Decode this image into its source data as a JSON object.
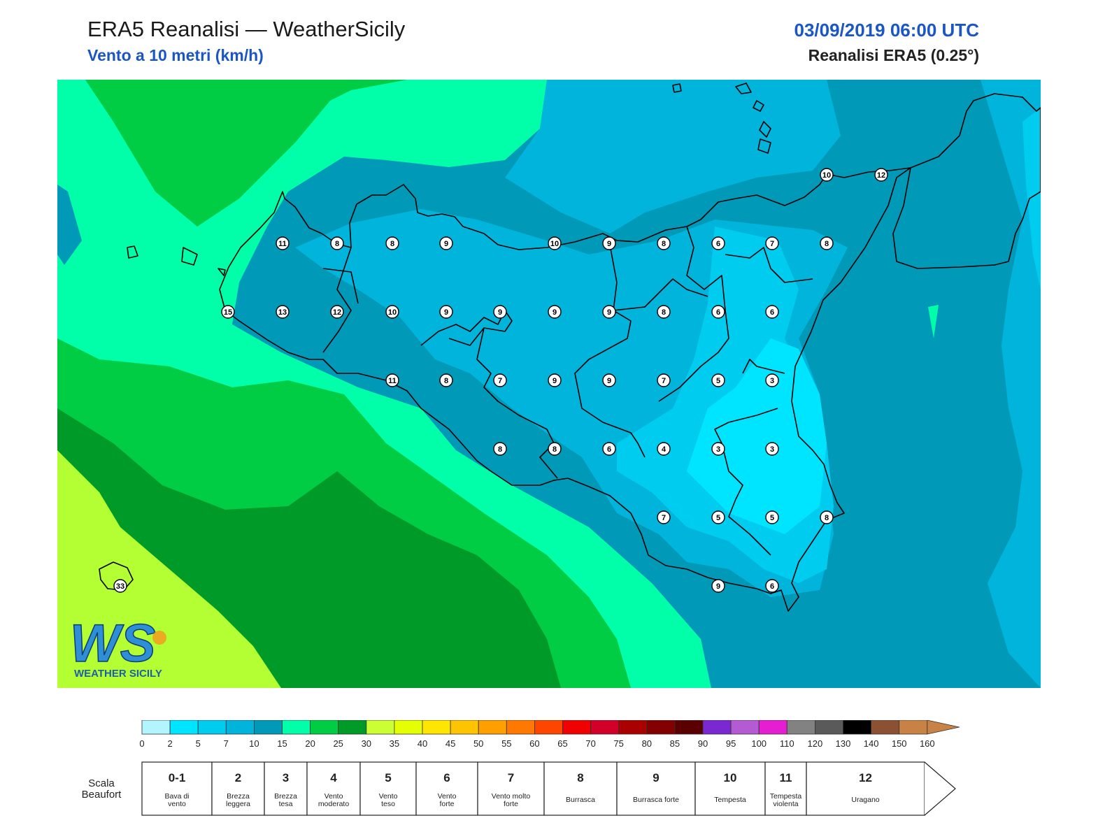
{
  "header": {
    "title": "ERA5 Reanalisi — WeatherSicily",
    "subtitle": "Vento a 10 metri (km/h)",
    "datetime": "03/09/2019 06:00 UTC",
    "model": "Reanalisi ERA5 (0.25°)"
  },
  "logo": {
    "letters": "WS",
    "text": "WEATHER SICILY"
  },
  "colorbar": {
    "ticks": [
      "0",
      "2",
      "5",
      "7",
      "10",
      "15",
      "20",
      "25",
      "30",
      "35",
      "40",
      "45",
      "50",
      "55",
      "60",
      "65",
      "70",
      "75",
      "80",
      "85",
      "90",
      "95",
      "100",
      "110",
      "120",
      "130",
      "140",
      "150",
      "160"
    ],
    "colors": [
      "#b3f5ff",
      "#00e5ff",
      "#00ccf0",
      "#00b4dc",
      "#0099b8",
      "#00ffa8",
      "#00cc44",
      "#009a28",
      "#ccff33",
      "#e6ff00",
      "#ffe600",
      "#ffc400",
      "#ffa000",
      "#ff7800",
      "#ff4600",
      "#f00000",
      "#d20028",
      "#aa0000",
      "#820000",
      "#5a0000",
      "#7a28d2",
      "#b45ad2",
      "#e61ed2",
      "#828282",
      "#5a5a5a",
      "#000000",
      "#8c5032",
      "#c88246"
    ]
  },
  "beaufort": {
    "title": "Scala Beaufort",
    "classes": [
      {
        "num": "0-1",
        "name": "Bava di vento"
      },
      {
        "num": "2",
        "name": "Brezza leggera"
      },
      {
        "num": "3",
        "name": "Brezza tesa"
      },
      {
        "num": "4",
        "name": "Vento moderato"
      },
      {
        "num": "5",
        "name": "Vento teso"
      },
      {
        "num": "6",
        "name": "Vento forte"
      },
      {
        "num": "7",
        "name": "Vento molto forte"
      },
      {
        "num": "8",
        "name": "Burrasca"
      },
      {
        "num": "9",
        "name": "Burrasca forte"
      },
      {
        "num": "10",
        "name": "Tempesta"
      },
      {
        "num": "11",
        "name": "Tempesta violenta"
      },
      {
        "num": "12",
        "name": "Uragano"
      }
    ]
  },
  "stations": [
    {
      "v": "10"
    },
    {
      "v": "12"
    },
    {
      "v": "11"
    },
    {
      "v": "8"
    },
    {
      "v": "8"
    },
    {
      "v": "9"
    },
    {
      "v": "10"
    },
    {
      "v": "9"
    },
    {
      "v": "8"
    },
    {
      "v": "6"
    },
    {
      "v": "7"
    },
    {
      "v": "8"
    },
    {
      "v": "15"
    },
    {
      "v": "13"
    },
    {
      "v": "12"
    },
    {
      "v": "10"
    },
    {
      "v": "9"
    },
    {
      "v": "9"
    },
    {
      "v": "9"
    },
    {
      "v": "9"
    },
    {
      "v": "8"
    },
    {
      "v": "6"
    },
    {
      "v": "6"
    },
    {
      "v": "11"
    },
    {
      "v": "8"
    },
    {
      "v": "7"
    },
    {
      "v": "9"
    },
    {
      "v": "9"
    },
    {
      "v": "7"
    },
    {
      "v": "5"
    },
    {
      "v": "3"
    },
    {
      "v": "8"
    },
    {
      "v": "8"
    },
    {
      "v": "6"
    },
    {
      "v": "4"
    },
    {
      "v": "3"
    },
    {
      "v": "3"
    },
    {
      "v": "7"
    },
    {
      "v": "5"
    },
    {
      "v": "5"
    },
    {
      "v": "8"
    },
    {
      "v": "9"
    },
    {
      "v": "6"
    },
    {
      "v": "33"
    }
  ]
}
